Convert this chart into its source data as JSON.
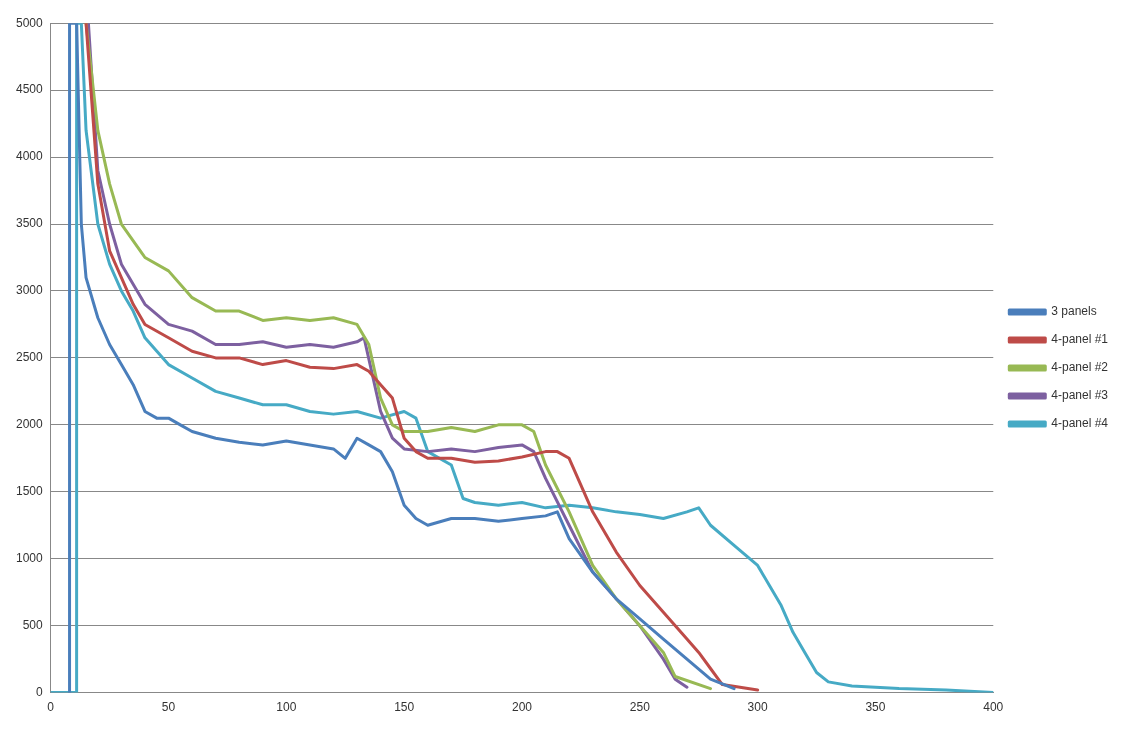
{
  "chart_data": {
    "type": "line",
    "xlim": [
      0,
      400
    ],
    "xticks": [
      0,
      50,
      100,
      150,
      200,
      250,
      300,
      350,
      400
    ],
    "ylim": [
      0,
      5000
    ],
    "yticks": [
      0,
      500,
      1000,
      1500,
      2000,
      2500,
      3000,
      3500,
      4000,
      4500,
      5000
    ],
    "grid": "y",
    "legend": "right",
    "marker": "none",
    "line_style": "solid",
    "series": [
      {
        "name": "3 panels",
        "color": "#4a7ebb",
        "x": [
          8,
          8,
          11,
          13,
          15,
          20,
          25,
          30,
          35,
          40,
          45,
          50,
          55,
          60,
          70,
          80,
          90,
          100,
          110,
          120,
          125,
          130,
          135,
          140,
          145,
          150,
          155,
          160,
          170,
          180,
          190,
          200,
          210,
          215,
          220,
          230,
          240,
          250,
          260,
          270,
          280,
          290
        ],
        "values": [
          0,
          5000,
          5000,
          3500,
          3100,
          2800,
          2600,
          2450,
          2300,
          2100,
          2050,
          2050,
          2000,
          1950,
          1900,
          1870,
          1850,
          1880,
          1850,
          1820,
          1750,
          1900,
          1850,
          1800,
          1650,
          1400,
          1300,
          1250,
          1300,
          1300,
          1280,
          1300,
          1320,
          1350,
          1150,
          900,
          700,
          550,
          400,
          250,
          100,
          30
        ]
      },
      {
        "name": "4-panel #1",
        "color": "#be4b48",
        "x": [
          15,
          20,
          25,
          30,
          35,
          40,
          50,
          60,
          70,
          80,
          90,
          100,
          110,
          120,
          130,
          135,
          140,
          145,
          150,
          155,
          160,
          170,
          180,
          190,
          200,
          210,
          215,
          220,
          225,
          230,
          240,
          250,
          260,
          270,
          275,
          280,
          285,
          300
        ],
        "values": [
          5000,
          3800,
          3300,
          3100,
          2900,
          2750,
          2650,
          2550,
          2500,
          2500,
          2450,
          2480,
          2430,
          2420,
          2450,
          2400,
          2300,
          2200,
          1900,
          1800,
          1750,
          1750,
          1720,
          1730,
          1760,
          1800,
          1800,
          1750,
          1550,
          1350,
          1050,
          800,
          600,
          400,
          300,
          180,
          60,
          20
        ]
      },
      {
        "name": "4-panel #2",
        "color": "#98b954",
        "x": [
          15,
          20,
          25,
          30,
          40,
          50,
          60,
          70,
          80,
          90,
          100,
          110,
          120,
          130,
          135,
          140,
          145,
          150,
          160,
          170,
          180,
          190,
          200,
          205,
          210,
          220,
          230,
          240,
          250,
          260,
          265,
          280
        ],
        "values": [
          5000,
          4200,
          3800,
          3500,
          3250,
          3150,
          2950,
          2850,
          2850,
          2780,
          2800,
          2780,
          2800,
          2750,
          2600,
          2200,
          2000,
          1950,
          1950,
          1980,
          1950,
          2000,
          2000,
          1950,
          1700,
          1350,
          950,
          700,
          500,
          300,
          120,
          30
        ]
      },
      {
        "name": "4-panel #3",
        "color": "#7d60a0",
        "x": [
          16,
          20,
          25,
          30,
          40,
          50,
          60,
          70,
          80,
          90,
          100,
          110,
          120,
          130,
          133,
          140,
          145,
          150,
          160,
          170,
          180,
          190,
          200,
          205,
          210,
          220,
          230,
          240,
          250,
          260,
          265,
          270
        ],
        "values": [
          5000,
          3900,
          3500,
          3200,
          2900,
          2750,
          2700,
          2600,
          2600,
          2620,
          2580,
          2600,
          2580,
          2620,
          2650,
          2100,
          1900,
          1820,
          1800,
          1820,
          1800,
          1830,
          1850,
          1800,
          1600,
          1250,
          900,
          700,
          500,
          250,
          100,
          40
        ]
      },
      {
        "name": "4-panel #4",
        "color": "#46aac5",
        "x": [
          0,
          11,
          11,
          13,
          15,
          20,
          25,
          30,
          35,
          40,
          50,
          60,
          70,
          80,
          90,
          100,
          110,
          120,
          130,
          140,
          150,
          155,
          160,
          170,
          175,
          180,
          190,
          200,
          210,
          220,
          230,
          240,
          250,
          260,
          270,
          275,
          280,
          290,
          300,
          305,
          310,
          315,
          320,
          325,
          330,
          340,
          360,
          380,
          400
        ],
        "values": [
          0,
          0,
          5000,
          5000,
          4200,
          3500,
          3200,
          3000,
          2850,
          2650,
          2450,
          2350,
          2250,
          2200,
          2150,
          2150,
          2100,
          2080,
          2100,
          2050,
          2100,
          2050,
          1800,
          1700,
          1450,
          1420,
          1400,
          1420,
          1380,
          1400,
          1380,
          1350,
          1330,
          1300,
          1350,
          1380,
          1250,
          1100,
          950,
          800,
          650,
          450,
          300,
          150,
          80,
          50,
          30,
          20,
          0
        ]
      }
    ]
  }
}
